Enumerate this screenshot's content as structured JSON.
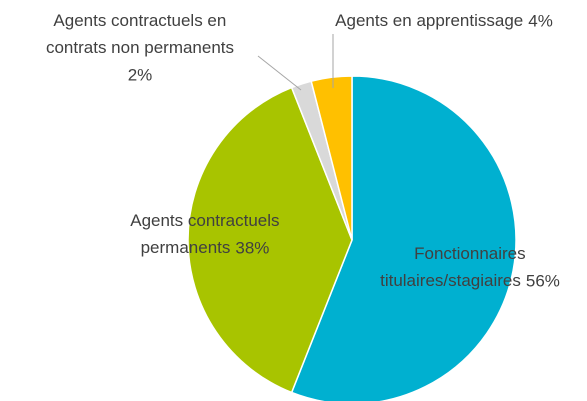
{
  "chart_data": {
    "type": "pie",
    "categories": [
      "Fonctionnaires titulaires/stagiaires",
      "Agents contractuels permanents",
      "Agents contractuels en contrats non permanents",
      "Agents en apprentissage"
    ],
    "values": [
      56,
      38,
      2,
      4
    ],
    "value_labels": [
      "56%",
      "38%",
      "2%",
      "4%"
    ],
    "colors": [
      "#00b0d0",
      "#a8c400",
      "#d9d9d9",
      "#ffc000"
    ]
  }
}
